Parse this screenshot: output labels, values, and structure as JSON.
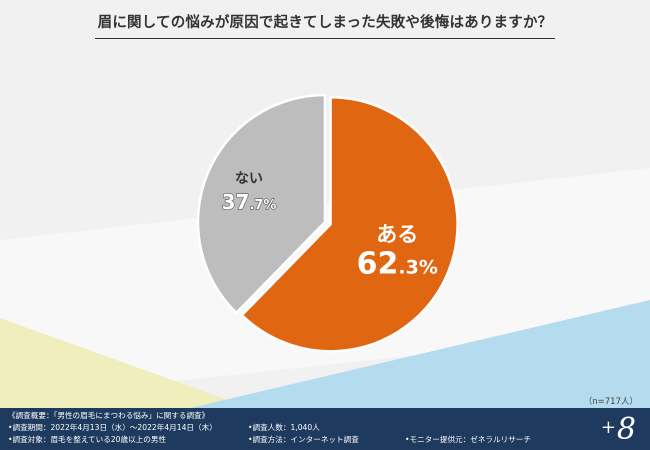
{
  "title": "眉に関しての悩みが原因で起きてしまった失敗や後悔はありますか？",
  "sample_size": "（n=717人）",
  "chart_data": {
    "type": "pie",
    "title": "眉に関しての悩みが原因で起きてしまった失敗や後悔はありますか？",
    "slices": [
      {
        "label": "ある",
        "value": 62.3,
        "value_int": "62",
        "value_dec": ".3%",
        "color": "#e06612"
      },
      {
        "label": "ない",
        "value": 37.7,
        "value_int": "37",
        "value_dec": ".7%",
        "color": "#bdbdbd"
      }
    ],
    "unit": "%",
    "n": 717
  },
  "footer": {
    "summary_title": "《調査概要：「男性の眉毛にまつわる悩み」に関する調査》",
    "period": "•調査期間：2022年4月13日（水）〜2022年4月14日（木）",
    "target": "•調査対象：眉毛を整えている20歳以上の男性",
    "count": "•調査人数：1,040人",
    "method": "•調査方法：インターネット調査",
    "provider": "•モニター提供元：ゼネラルリサーチ",
    "logo_plus": "+",
    "logo_num": "8"
  },
  "colors": {
    "background": "#f1f1f2",
    "accent_orange": "#e06612",
    "slice_gray": "#bdbdbd",
    "footer_navy": "#1f3a5f",
    "deco_yellow": "#f1eebd",
    "deco_blue": "#b5dcee"
  }
}
